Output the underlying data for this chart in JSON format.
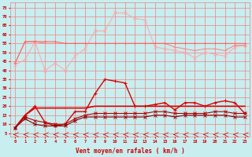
{
  "x": [
    0,
    1,
    2,
    3,
    4,
    5,
    6,
    7,
    8,
    9,
    10,
    11,
    12,
    13,
    14,
    15,
    16,
    17,
    18,
    19,
    20,
    21,
    22,
    23
  ],
  "background_color": "#c8eef0",
  "grid_color": "#f08080",
  "xlabel": "Vent moyen/en rafales ( km/h )",
  "tick_color": "#cc0000",
  "yticks": [
    5,
    10,
    15,
    20,
    25,
    30,
    35,
    40,
    45,
    50,
    55,
    60,
    65,
    70,
    75
  ],
  "ylim": [
    3,
    78
  ],
  "xlim": [
    -0.5,
    23.5
  ],
  "series1_color": "#ffaaaa",
  "series2_color": "#ff8888",
  "series3_color": "#ff6666",
  "series4_color": "#ff4444",
  "series5_color": "#dd0000",
  "series6_color": "#aa0000",
  "series7_color": "#880000",
  "series1": [
    43,
    46,
    56,
    40,
    44,
    40,
    48,
    52,
    62,
    62,
    72,
    72,
    69,
    68,
    53,
    52,
    51,
    50,
    47,
    50,
    49,
    48,
    53,
    54
  ],
  "series2": [
    44,
    56,
    56,
    55,
    55,
    55,
    55,
    55,
    55,
    55,
    55,
    55,
    55,
    55,
    55,
    55,
    53,
    52,
    51,
    52,
    52,
    51,
    54,
    54
  ],
  "series3": [
    44,
    56,
    56,
    56,
    56,
    55,
    55,
    55,
    55,
    55,
    55,
    55,
    55,
    55,
    55,
    55,
    55,
    55,
    55,
    55,
    55,
    55,
    55,
    55
  ],
  "series4": [
    8,
    15,
    20,
    11,
    9,
    10,
    17,
    17,
    27,
    35,
    34,
    33,
    20,
    20,
    21,
    22,
    18,
    22,
    22,
    20,
    22,
    23,
    22,
    16
  ],
  "series5": [
    8,
    15,
    19,
    19,
    19,
    19,
    19,
    19,
    20,
    20,
    20,
    20,
    20,
    20,
    20,
    20,
    20,
    20,
    20,
    20,
    20,
    20,
    20,
    20
  ],
  "series6": [
    8,
    14,
    12,
    11,
    10,
    10,
    13,
    15,
    16,
    16,
    16,
    16,
    16,
    16,
    17,
    17,
    16,
    16,
    16,
    16,
    17,
    17,
    16,
    16
  ],
  "series7": [
    8,
    13,
    10,
    9,
    9,
    9,
    12,
    14,
    14,
    14,
    14,
    14,
    14,
    14,
    15,
    15,
    14,
    15,
    15,
    15,
    15,
    15,
    14,
    14
  ]
}
